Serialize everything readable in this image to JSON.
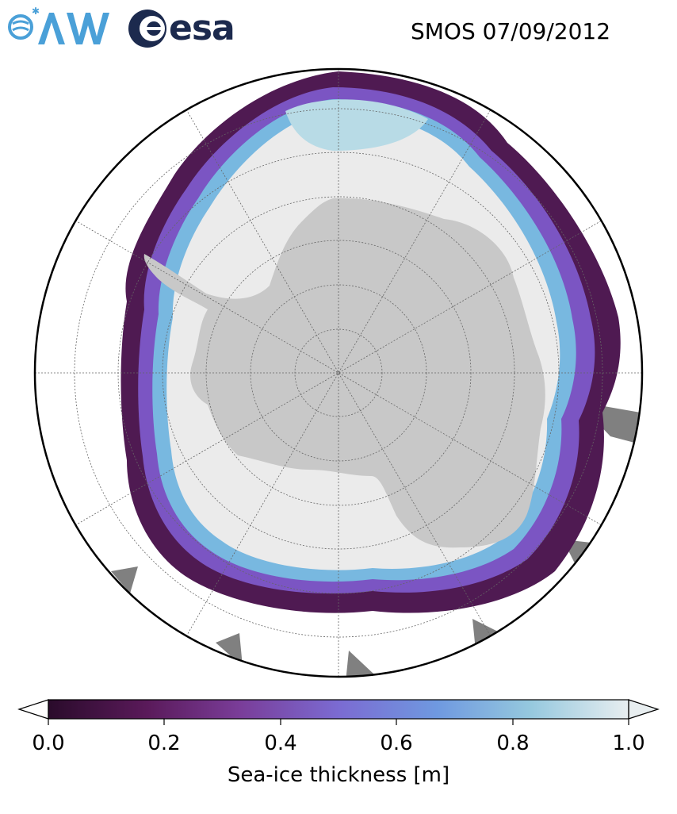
{
  "header": {
    "logos": [
      {
        "name": "awi-logo",
        "text": "AWI"
      },
      {
        "name": "esa-logo",
        "text": "esa"
      }
    ],
    "title": "SMOS 07/09/2012"
  },
  "map": {
    "projection": "south-polar-stereographic",
    "gridlines": true,
    "colors": {
      "land": "#c8c8c8",
      "thick_ice": "#ebebeb",
      "ocean": "#ffffff",
      "missing": "#808080",
      "edge_dark": "#4f1a52",
      "edge_mid": "#7b55c3",
      "edge_light": "#78b8e0"
    }
  },
  "colorbar": {
    "label": "Sea-ice thickness [m]",
    "ticks": [
      "0.0",
      "0.2",
      "0.4",
      "0.6",
      "0.8",
      "1.0"
    ],
    "range": [
      0.0,
      1.0
    ],
    "colormap": [
      "#2a0b2b",
      "#5a1a5a",
      "#7a3d99",
      "#7b6bd2",
      "#6f99e0",
      "#95c8de",
      "#e8eef0"
    ]
  }
}
